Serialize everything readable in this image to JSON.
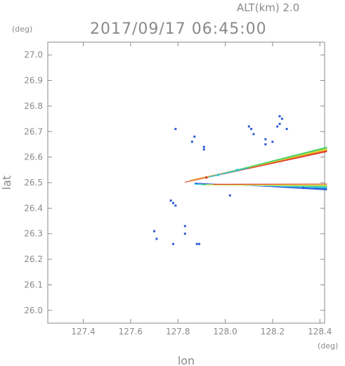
{
  "chart_data": {
    "type": "scatter",
    "title": "2017/09/17 06:45:00",
    "altitude_label": "ALT(km) 2.0",
    "xlabel": "lon",
    "ylabel": "lat",
    "x_unit": "(deg)",
    "y_unit": "(deg)",
    "xlim": [
      127.25,
      128.42
    ],
    "ylim": [
      25.95,
      27.05
    ],
    "x_ticks": [
      127.4,
      127.6,
      127.8,
      128.0,
      128.2,
      128.4
    ],
    "x_tick_labels": [
      "127.4",
      "127.6",
      "127.8",
      "128.0",
      "128.2",
      "128.4"
    ],
    "y_ticks": [
      26.0,
      26.1,
      26.2,
      26.3,
      26.4,
      26.5,
      26.6,
      26.7,
      26.8,
      26.9,
      27.0
    ],
    "y_tick_labels": [
      "26.0",
      "26.1",
      "26.2",
      "26.3",
      "26.4",
      "26.5",
      "26.6",
      "26.7",
      "26.8",
      "26.9",
      "27.0"
    ],
    "grid": false,
    "colors": {
      "axis": "#8a8a8a",
      "echo_blue": "#2f5bd8",
      "echo_cyan": "#2ec8e0",
      "echo_green": "#48d068",
      "echo_yellow": "#e8e030",
      "echo_orange": "#e89028",
      "echo_red": "#d83028"
    },
    "echo_points": [
      {
        "lon": 127.79,
        "lat": 26.71,
        "color": "echo_blue"
      },
      {
        "lon": 127.87,
        "lat": 26.68,
        "color": "echo_blue"
      },
      {
        "lon": 127.86,
        "lat": 26.66,
        "color": "echo_blue"
      },
      {
        "lon": 127.91,
        "lat": 26.64,
        "color": "echo_blue"
      },
      {
        "lon": 127.91,
        "lat": 26.63,
        "color": "echo_blue"
      },
      {
        "lon": 128.1,
        "lat": 26.72,
        "color": "echo_blue"
      },
      {
        "lon": 128.11,
        "lat": 26.71,
        "color": "echo_blue"
      },
      {
        "lon": 128.12,
        "lat": 26.69,
        "color": "echo_blue"
      },
      {
        "lon": 128.17,
        "lat": 26.67,
        "color": "echo_blue"
      },
      {
        "lon": 128.17,
        "lat": 26.65,
        "color": "echo_blue"
      },
      {
        "lon": 128.23,
        "lat": 26.76,
        "color": "echo_blue"
      },
      {
        "lon": 128.24,
        "lat": 26.75,
        "color": "echo_blue"
      },
      {
        "lon": 128.23,
        "lat": 26.73,
        "color": "echo_blue"
      },
      {
        "lon": 128.22,
        "lat": 26.72,
        "color": "echo_blue"
      },
      {
        "lon": 128.26,
        "lat": 26.71,
        "color": "echo_blue"
      },
      {
        "lon": 128.2,
        "lat": 26.66,
        "color": "echo_blue"
      },
      {
        "lon": 128.02,
        "lat": 26.45,
        "color": "echo_blue"
      },
      {
        "lon": 127.77,
        "lat": 26.43,
        "color": "echo_blue"
      },
      {
        "lon": 127.78,
        "lat": 26.42,
        "color": "echo_blue"
      },
      {
        "lon": 127.79,
        "lat": 26.41,
        "color": "echo_blue"
      },
      {
        "lon": 127.83,
        "lat": 26.33,
        "color": "echo_blue"
      },
      {
        "lon": 127.83,
        "lat": 26.3,
        "color": "echo_blue"
      },
      {
        "lon": 127.7,
        "lat": 26.31,
        "color": "echo_blue"
      },
      {
        "lon": 127.71,
        "lat": 26.28,
        "color": "echo_blue"
      },
      {
        "lon": 127.78,
        "lat": 26.26,
        "color": "echo_blue"
      },
      {
        "lon": 127.88,
        "lat": 26.26,
        "color": "echo_blue"
      },
      {
        "lon": 127.89,
        "lat": 26.26,
        "color": "echo_blue"
      },
      {
        "lon": 127.92,
        "lat": 26.52,
        "color": "echo_red"
      },
      {
        "lon": 127.97,
        "lat": 26.53,
        "color": "echo_cyan"
      },
      {
        "lon": 128.05,
        "lat": 26.55,
        "color": "echo_cyan"
      },
      {
        "lon": 128.33,
        "lat": 26.48,
        "color": "echo_blue"
      }
    ],
    "echo_bands": [
      {
        "color": "echo_red",
        "points": [
          [
            127.83,
            26.5
          ],
          [
            128.43,
            26.62
          ],
          [
            128.43,
            26.625
          ],
          [
            127.83,
            26.503
          ]
        ]
      },
      {
        "color": "echo_orange",
        "points": [
          [
            127.85,
            26.505
          ],
          [
            128.43,
            26.625
          ],
          [
            128.43,
            26.63
          ],
          [
            127.85,
            26.51
          ]
        ]
      },
      {
        "color": "echo_yellow",
        "points": [
          [
            127.9,
            26.515
          ],
          [
            128.43,
            26.63
          ],
          [
            128.43,
            26.635
          ],
          [
            127.92,
            26.522
          ]
        ]
      },
      {
        "color": "echo_green",
        "points": [
          [
            127.95,
            26.525
          ],
          [
            128.43,
            26.634
          ],
          [
            128.43,
            26.641
          ],
          [
            128.0,
            26.54
          ]
        ]
      },
      {
        "color": "echo_cyan",
        "points": [
          [
            127.93,
            26.52
          ],
          [
            128.1,
            26.556
          ],
          [
            128.1,
            26.559
          ],
          [
            127.93,
            26.524
          ]
        ]
      },
      {
        "color": "echo_blue",
        "points": [
          [
            127.87,
            26.5
          ],
          [
            128.43,
            26.47
          ],
          [
            128.43,
            26.478
          ],
          [
            127.87,
            26.496
          ]
        ]
      },
      {
        "color": "echo_cyan",
        "points": [
          [
            127.87,
            26.496
          ],
          [
            128.43,
            26.478
          ],
          [
            128.43,
            26.484
          ],
          [
            127.87,
            26.492
          ]
        ]
      },
      {
        "color": "echo_green",
        "points": [
          [
            127.9,
            26.493
          ],
          [
            128.43,
            26.484
          ],
          [
            128.43,
            26.488
          ],
          [
            127.9,
            26.49
          ]
        ]
      },
      {
        "color": "echo_yellow",
        "points": [
          [
            127.92,
            26.49
          ],
          [
            128.43,
            26.488
          ],
          [
            128.43,
            26.492
          ],
          [
            127.92,
            26.493
          ]
        ]
      },
      {
        "color": "echo_red",
        "points": [
          [
            127.95,
            26.492
          ],
          [
            128.43,
            26.493
          ],
          [
            128.43,
            26.496
          ],
          [
            127.95,
            26.495
          ]
        ]
      }
    ]
  }
}
